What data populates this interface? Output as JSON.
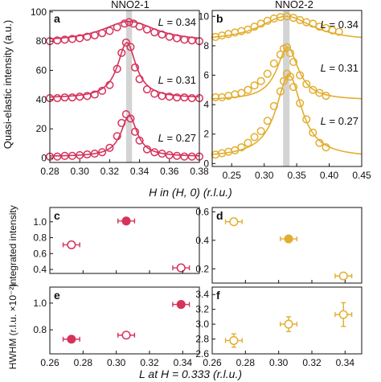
{
  "figure": {
    "top_xlabel": "H in (H, 0) (r.l.u.)",
    "top_ylabel": "Quasi-elastic intensity (a.u.)",
    "bottom_xlabel": "L at H = 0.333 (r.l.u.)",
    "ylabel_integrated": "Integrated intensity",
    "ylabel_hwhm": "HWHM (r.l.u. ×10⁻²)"
  },
  "colors": {
    "nno1": "#d6335b",
    "nno2": "#e3ae2f",
    "band": "#d4d4d4",
    "axis": "#111111"
  },
  "chart_data": [
    {
      "panel": "a",
      "type": "line",
      "title": "NNO2-1",
      "xlim": [
        0.28,
        0.38
      ],
      "ylim": [
        -3,
        101
      ],
      "xticks": [
        "0.28",
        "0.30",
        "0.32",
        "0.34",
        "0.36",
        "0.38"
      ],
      "yticks": [
        "0",
        "20",
        "40",
        "60",
        "80",
        "100"
      ],
      "band": [
        0.331,
        0.335
      ],
      "series": [
        {
          "name": "L = 0.34",
          "fit": {
            "base": 79.5,
            "amp": 14,
            "center": 0.333,
            "width": 0.022
          },
          "x": [
            0.28,
            0.285,
            0.29,
            0.295,
            0.3,
            0.305,
            0.31,
            0.315,
            0.32,
            0.325,
            0.33,
            0.333,
            0.336,
            0.34,
            0.345,
            0.35,
            0.355,
            0.36,
            0.365,
            0.37,
            0.375,
            0.38
          ],
          "y": [
            80,
            80.5,
            81,
            81.5,
            82,
            83,
            84,
            85.5,
            87,
            89.5,
            92,
            93,
            92,
            90,
            88,
            86,
            84.5,
            83,
            82,
            81,
            80.5,
            80
          ]
        },
        {
          "name": "L = 0.31",
          "fit": {
            "base": 41,
            "amp": 38,
            "center": 0.3315,
            "width": 0.0075
          },
          "x": [
            0.28,
            0.285,
            0.29,
            0.295,
            0.3,
            0.305,
            0.31,
            0.315,
            0.32,
            0.325,
            0.328,
            0.331,
            0.334,
            0.337,
            0.34,
            0.345,
            0.35,
            0.355,
            0.36,
            0.365,
            0.37,
            0.375,
            0.38
          ],
          "y": [
            41,
            41,
            41.5,
            41.5,
            42,
            42.5,
            43.5,
            46,
            50,
            61,
            72,
            79,
            76,
            62,
            54,
            47,
            44,
            42.5,
            42,
            41.5,
            41.5,
            41,
            41
          ]
        },
        {
          "name": "L = 0.27",
          "fit": {
            "base": 1,
            "amp": 28,
            "center": 0.333,
            "width": 0.0065
          },
          "x": [
            0.28,
            0.285,
            0.29,
            0.295,
            0.3,
            0.305,
            0.31,
            0.315,
            0.32,
            0.325,
            0.328,
            0.331,
            0.334,
            0.337,
            0.34,
            0.345,
            0.35,
            0.355,
            0.36,
            0.365,
            0.37,
            0.375,
            0.38
          ],
          "y": [
            1,
            1,
            1.5,
            1.5,
            2,
            2.5,
            3,
            4,
            7,
            15,
            24,
            30,
            27,
            18,
            12,
            6,
            4,
            3,
            2,
            1.5,
            1,
            1,
            1
          ]
        }
      ],
      "labels": [
        "L = 0.34",
        "L = 0.31",
        "L = 0.27"
      ]
    },
    {
      "panel": "b",
      "type": "line",
      "title": "NNO2-2",
      "xlim": [
        0.22,
        0.45
      ],
      "ylim": [
        -0.2,
        10.4
      ],
      "xticks": [
        "0.25",
        "0.30",
        "0.35",
        "0.40",
        "0.45"
      ],
      "yticks": [
        "0",
        "2",
        "4",
        "6",
        "8",
        "10"
      ],
      "band": [
        0.329,
        0.339
      ],
      "series": [
        {
          "name": "L = 0.34",
          "fit": {
            "base": 8.3,
            "amp": 1.7,
            "center": 0.334,
            "width": 0.05
          },
          "x": [
            0.225,
            0.235,
            0.245,
            0.255,
            0.265,
            0.275,
            0.285,
            0.295,
            0.305,
            0.315,
            0.325,
            0.335,
            0.345,
            0.355,
            0.365,
            0.375,
            0.385,
            0.395,
            0.405,
            0.415
          ],
          "y": [
            8.6,
            8.7,
            8.8,
            8.9,
            9.0,
            9.1,
            9.3,
            9.5,
            9.7,
            9.85,
            9.95,
            10.0,
            9.9,
            9.75,
            9.6,
            9.5,
            9.3,
            9.2,
            9.05,
            8.95
          ]
        },
        {
          "name": "L = 0.31",
          "fit": {
            "base": 4.3,
            "amp": 3.6,
            "center": 0.336,
            "width": 0.02
          },
          "x": [
            0.225,
            0.235,
            0.245,
            0.255,
            0.265,
            0.275,
            0.285,
            0.295,
            0.305,
            0.315,
            0.325,
            0.33,
            0.335,
            0.34,
            0.345,
            0.355,
            0.365,
            0.375,
            0.385,
            0.395
          ],
          "y": [
            4.5,
            4.5,
            4.6,
            4.7,
            4.8,
            5.0,
            5.3,
            5.6,
            6.1,
            6.8,
            7.4,
            7.8,
            7.9,
            7.5,
            6.9,
            6.0,
            5.4,
            5.0,
            4.8,
            4.6
          ]
        },
        {
          "name": "L = 0.27",
          "fit": {
            "base": 0.4,
            "amp": 5.6,
            "center": 0.338,
            "width": 0.024
          },
          "x": [
            0.225,
            0.235,
            0.245,
            0.255,
            0.265,
            0.275,
            0.285,
            0.295,
            0.305,
            0.315,
            0.325,
            0.33,
            0.335,
            0.34,
            0.345,
            0.355,
            0.365,
            0.375,
            0.385,
            0.395
          ],
          "y": [
            0.6,
            0.7,
            0.8,
            0.9,
            1.1,
            1.4,
            1.8,
            2.2,
            2.9,
            3.9,
            4.9,
            5.6,
            6.1,
            5.9,
            5.2,
            4.1,
            3.0,
            2.1,
            1.4,
            1.1
          ]
        }
      ],
      "labels": [
        "L = 0.34",
        "L = 0.31",
        "L = 0.27"
      ]
    },
    {
      "panel": "c",
      "type": "scatter",
      "xlim": [
        0.26,
        0.35
      ],
      "ylim": [
        0.35,
        1.18
      ],
      "yticks": [
        "0.4",
        "0.6",
        "0.8",
        "1.0"
      ],
      "points": [
        {
          "x": 0.273,
          "y": 0.71,
          "xerr": 0.005,
          "yerr": 0.03,
          "filled": false
        },
        {
          "x": 0.306,
          "y": 1.01,
          "xerr": 0.005,
          "yerr": 0.03,
          "filled": true
        },
        {
          "x": 0.339,
          "y": 0.42,
          "xerr": 0.005,
          "yerr": 0.03,
          "filled": false
        }
      ]
    },
    {
      "panel": "d",
      "type": "scatter",
      "xlim": [
        0.26,
        0.35
      ],
      "ylim": [
        0.1,
        0.63
      ],
      "yticks": [
        "0.2",
        "0.4",
        "0.6"
      ],
      "points": [
        {
          "x": 0.273,
          "y": 0.53,
          "xerr": 0.005,
          "yerr": 0.015,
          "filled": false
        },
        {
          "x": 0.306,
          "y": 0.41,
          "xerr": 0.005,
          "yerr": 0.015,
          "filled": true
        },
        {
          "x": 0.339,
          "y": 0.15,
          "xerr": 0.005,
          "yerr": 0.015,
          "filled": false
        }
      ]
    },
    {
      "panel": "e",
      "type": "scatter",
      "xlim": [
        0.26,
        0.35
      ],
      "ylim": [
        0.62,
        1.12
      ],
      "xticks": [
        "0.26",
        "0.28",
        "0.30",
        "0.32",
        "0.34"
      ],
      "yticks": [
        "0.8",
        "1.0"
      ],
      "points": [
        {
          "x": 0.273,
          "y": 0.73,
          "xerr": 0.005,
          "yerr": 0.015,
          "filled": true
        },
        {
          "x": 0.306,
          "y": 0.76,
          "xerr": 0.005,
          "yerr": 0.015,
          "filled": false
        },
        {
          "x": 0.339,
          "y": 0.99,
          "xerr": 0.005,
          "yerr": 0.015,
          "filled": true
        }
      ]
    },
    {
      "panel": "f",
      "type": "scatter",
      "xlim": [
        0.26,
        0.35
      ],
      "ylim": [
        2.6,
        3.5
      ],
      "xticks": [
        "0.26",
        "0.28",
        "0.30",
        "0.32",
        "0.34"
      ],
      "yticks": [
        "2.6",
        "2.8",
        "3.0",
        "3.2",
        "3.4"
      ],
      "points": [
        {
          "x": 0.273,
          "y": 2.78,
          "xerr": 0.005,
          "yerr": 0.09,
          "filled": false
        },
        {
          "x": 0.306,
          "y": 3.0,
          "xerr": 0.005,
          "yerr": 0.1,
          "filled": false
        },
        {
          "x": 0.339,
          "y": 3.13,
          "xerr": 0.005,
          "yerr": 0.16,
          "filled": false
        }
      ]
    }
  ]
}
